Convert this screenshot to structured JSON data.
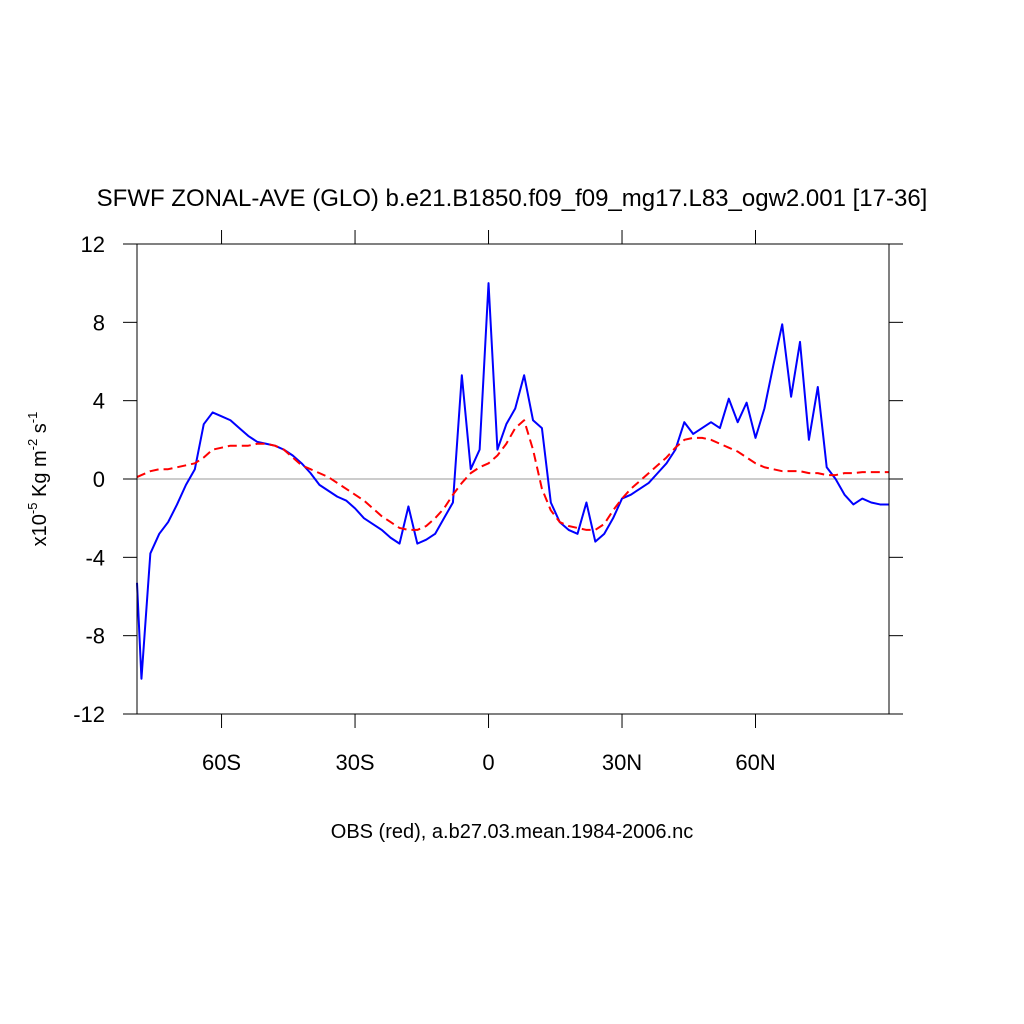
{
  "chart_data": {
    "type": "line",
    "title": "SFWF ZONAL-AVE (GLO) b.e21.B1850.f09_f09_mg17.L83_ogw2.001 [17-36]",
    "xlabel": "OBS (red), a.b27.03.mean.1984-2006.nc",
    "ylabel": [
      "x10",
      "-5",
      " Kg m",
      "-2",
      " s",
      "-1"
    ],
    "x": [
      -79,
      -78,
      -76,
      -74,
      -72,
      -70,
      -68,
      -66,
      -64,
      -62,
      -60,
      -58,
      -56,
      -54,
      -52,
      -50,
      -48,
      -46,
      -44,
      -42,
      -40,
      -38,
      -36,
      -34,
      -32,
      -30,
      -28,
      -26,
      -24,
      -22,
      -20,
      -18,
      -16,
      -14,
      -12,
      -10,
      -8,
      -6,
      -4,
      -2,
      0,
      2,
      4,
      6,
      8,
      10,
      12,
      14,
      16,
      18,
      20,
      22,
      24,
      26,
      28,
      30,
      32,
      34,
      36,
      38,
      40,
      42,
      44,
      46,
      48,
      50,
      52,
      54,
      56,
      58,
      60,
      62,
      64,
      66,
      68,
      70,
      72,
      74,
      76,
      78,
      80,
      82,
      84,
      86,
      88,
      90
    ],
    "series": [
      {
        "color": "#0000ff",
        "dashed": false,
        "values": [
          -5.3,
          -10.2,
          -3.8,
          -2.8,
          -2.2,
          -1.3,
          -0.3,
          0.5,
          2.8,
          3.4,
          3.2,
          3.0,
          2.6,
          2.2,
          1.9,
          1.8,
          1.7,
          1.5,
          1.2,
          0.8,
          0.3,
          -0.3,
          -0.6,
          -0.9,
          -1.1,
          -1.5,
          -2.0,
          -2.3,
          -2.6,
          -3.0,
          -3.3,
          -1.4,
          -3.3,
          -3.1,
          -2.8,
          -2.0,
          -1.2,
          5.3,
          0.5,
          1.5,
          10.0,
          1.5,
          2.8,
          3.6,
          5.3,
          3.0,
          2.6,
          -1.2,
          -2.2,
          -2.6,
          -2.8,
          -1.2,
          -3.2,
          -2.8,
          -2.0,
          -1.0,
          -0.8,
          -0.5,
          -0.2,
          0.3,
          0.8,
          1.5,
          2.9,
          2.3,
          2.6,
          2.9,
          2.6,
          4.1,
          2.9,
          3.9,
          2.1,
          3.6,
          5.8,
          7.9,
          4.2,
          7.0,
          2.0,
          4.7,
          0.6,
          0.0,
          -0.8,
          -1.3,
          -1.0,
          -1.2,
          -1.3,
          -1.3
        ]
      },
      {
        "color": "#ff0000",
        "dashed": true,
        "values": [
          0.1,
          0.2,
          0.4,
          0.5,
          0.5,
          0.6,
          0.7,
          0.8,
          1.1,
          1.5,
          1.6,
          1.7,
          1.7,
          1.7,
          1.8,
          1.8,
          1.7,
          1.5,
          1.1,
          0.7,
          0.5,
          0.3,
          0.1,
          -0.2,
          -0.5,
          -0.8,
          -1.1,
          -1.5,
          -1.9,
          -2.2,
          -2.5,
          -2.6,
          -2.6,
          -2.4,
          -2.0,
          -1.5,
          -0.8,
          -0.2,
          0.3,
          0.6,
          0.8,
          1.2,
          1.8,
          2.6,
          3.0,
          1.5,
          -0.5,
          -1.6,
          -2.2,
          -2.4,
          -2.5,
          -2.6,
          -2.6,
          -2.3,
          -1.6,
          -1.0,
          -0.5,
          -0.1,
          0.3,
          0.7,
          1.1,
          1.6,
          2.0,
          2.1,
          2.1,
          2.0,
          1.8,
          1.6,
          1.4,
          1.1,
          0.8,
          0.6,
          0.5,
          0.4,
          0.4,
          0.4,
          0.3,
          0.3,
          0.2,
          0.2,
          0.3,
          0.3,
          0.35,
          0.35,
          0.35,
          0.35
        ]
      }
    ],
    "xlim": [
      -79,
      90
    ],
    "ylim": [
      -12,
      12
    ],
    "xticks": [
      {
        "value": -60,
        "label": "60S"
      },
      {
        "value": -30,
        "label": "30S"
      },
      0,
      {
        "value": 30,
        "label": "30N"
      },
      {
        "value": 60,
        "label": "60N"
      }
    ],
    "yticks": [
      -12,
      -8,
      -4,
      0,
      4,
      8,
      12
    ],
    "zero_line": true
  }
}
